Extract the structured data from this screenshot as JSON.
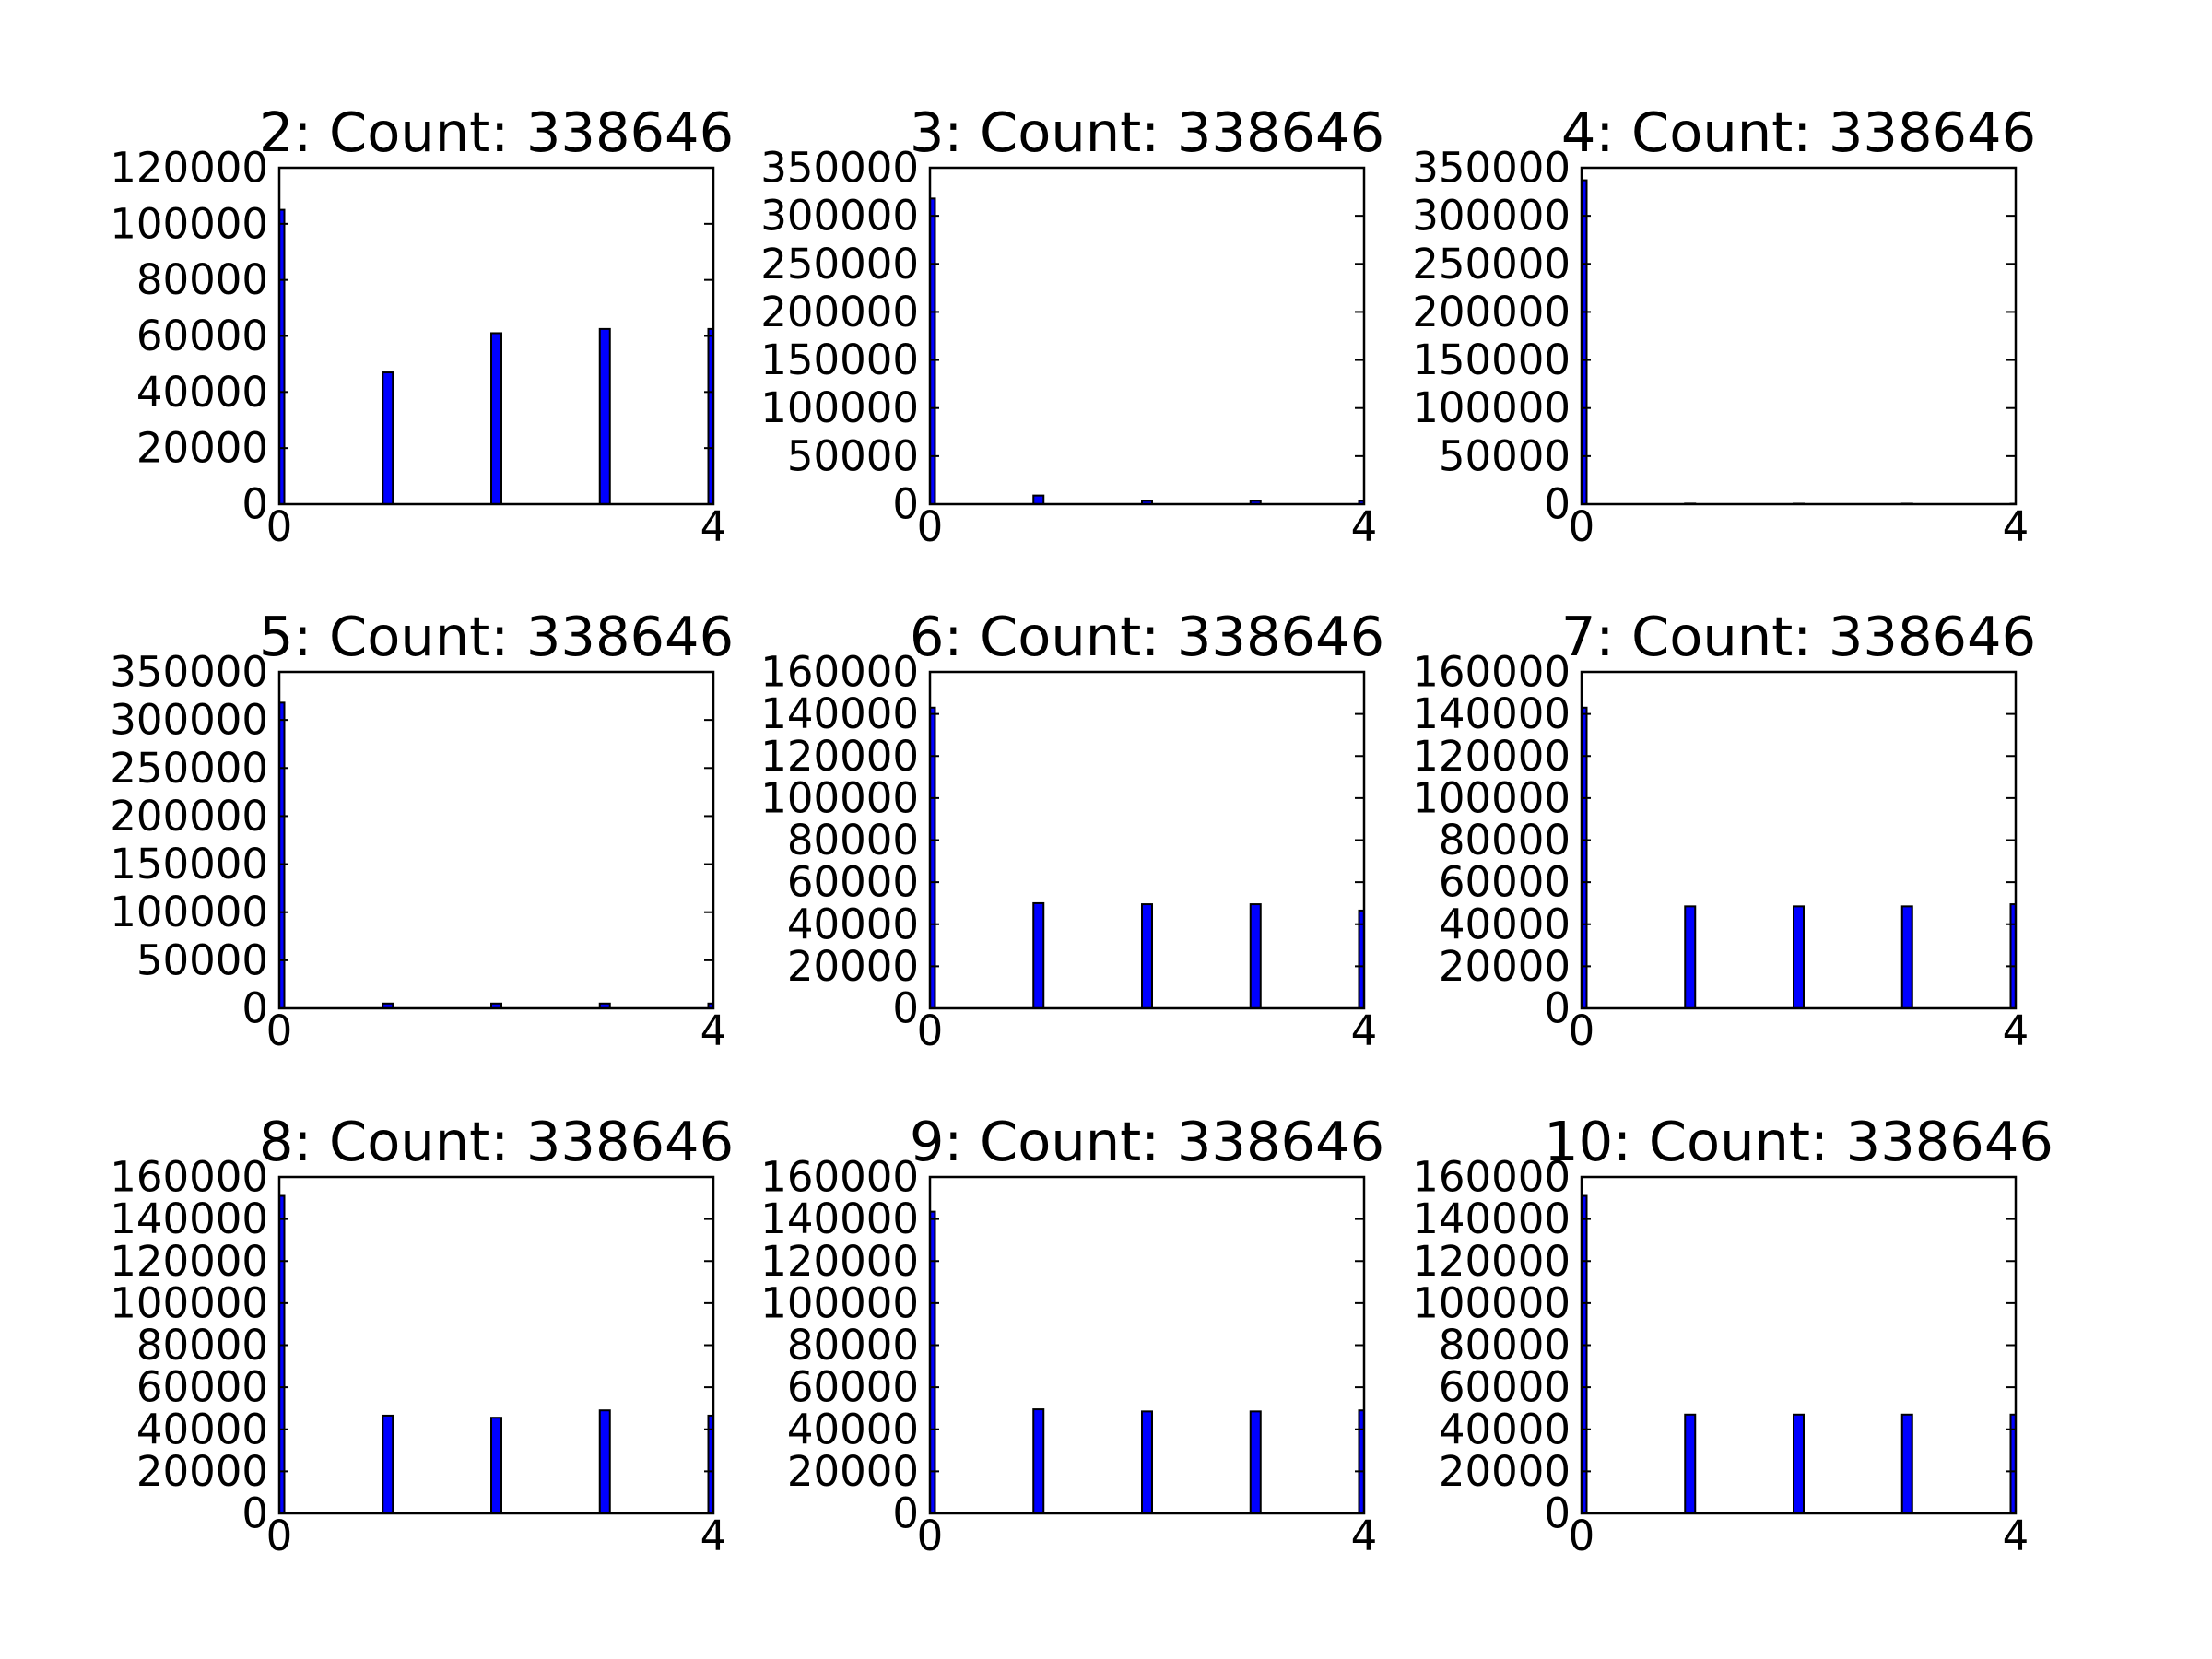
{
  "bar_color": "#0000ff",
  "chart_data": [
    {
      "type": "bar",
      "title": "2: Count: 338646",
      "xlabel": "",
      "ylabel": "",
      "x": [
        0,
        1,
        2,
        3,
        4
      ],
      "values": [
        105000,
        47000,
        61000,
        62500,
        62500
      ],
      "xlim": [
        0,
        4
      ],
      "ylim": [
        0,
        120000
      ],
      "x_ticks": [
        "0",
        "4"
      ],
      "y_ticks": [
        "0",
        "20000",
        "40000",
        "60000",
        "80000",
        "100000",
        "120000"
      ],
      "grid": false
    },
    {
      "type": "bar",
      "title": "3: Count: 338646",
      "xlabel": "",
      "ylabel": "",
      "x": [
        0,
        1,
        2,
        3,
        4
      ],
      "values": [
        318000,
        9000,
        3500,
        3500,
        3500
      ],
      "xlim": [
        0,
        4
      ],
      "ylim": [
        0,
        350000
      ],
      "x_ticks": [
        "0",
        "4"
      ],
      "y_ticks": [
        "0",
        "50000",
        "100000",
        "150000",
        "200000",
        "250000",
        "300000",
        "350000"
      ],
      "grid": false
    },
    {
      "type": "bar",
      "title": "4: Count: 338646",
      "xlabel": "",
      "ylabel": "",
      "x": [
        0,
        1,
        2,
        3,
        4
      ],
      "values": [
        337000,
        600,
        500,
        500,
        400
      ],
      "xlim": [
        0,
        4
      ],
      "ylim": [
        0,
        350000
      ],
      "x_ticks": [
        "0",
        "4"
      ],
      "y_ticks": [
        "0",
        "50000",
        "100000",
        "150000",
        "200000",
        "250000",
        "300000",
        "350000"
      ],
      "grid": false
    },
    {
      "type": "bar",
      "title": "5: Count: 338646",
      "xlabel": "",
      "ylabel": "",
      "x": [
        0,
        1,
        2,
        3,
        4
      ],
      "values": [
        318000,
        5000,
        5000,
        5000,
        5000
      ],
      "xlim": [
        0,
        4
      ],
      "ylim": [
        0,
        350000
      ],
      "x_ticks": [
        "0",
        "4"
      ],
      "y_ticks": [
        "0",
        "50000",
        "100000",
        "150000",
        "200000",
        "250000",
        "300000",
        "350000"
      ],
      "grid": false
    },
    {
      "type": "bar",
      "title": "6: Count: 338646",
      "xlabel": "",
      "ylabel": "",
      "x": [
        0,
        1,
        2,
        3,
        4
      ],
      "values": [
        143000,
        50000,
        49500,
        49500,
        46500
      ],
      "xlim": [
        0,
        4
      ],
      "ylim": [
        0,
        160000
      ],
      "x_ticks": [
        "0",
        "4"
      ],
      "y_ticks": [
        "0",
        "20000",
        "40000",
        "60000",
        "80000",
        "100000",
        "120000",
        "140000",
        "160000"
      ],
      "grid": false
    },
    {
      "type": "bar",
      "title": "7: Count: 338646",
      "xlabel": "",
      "ylabel": "",
      "x": [
        0,
        1,
        2,
        3,
        4
      ],
      "values": [
        143000,
        48500,
        48500,
        48500,
        49500
      ],
      "xlim": [
        0,
        4
      ],
      "ylim": [
        0,
        160000
      ],
      "x_ticks": [
        "0",
        "4"
      ],
      "y_ticks": [
        "0",
        "20000",
        "40000",
        "60000",
        "80000",
        "100000",
        "120000",
        "140000",
        "160000"
      ],
      "grid": false
    },
    {
      "type": "bar",
      "title": "8: Count: 338646",
      "xlabel": "",
      "ylabel": "",
      "x": [
        0,
        1,
        2,
        3,
        4
      ],
      "values": [
        151000,
        46500,
        45500,
        49000,
        46500
      ],
      "xlim": [
        0,
        4
      ],
      "ylim": [
        0,
        160000
      ],
      "x_ticks": [
        "0",
        "4"
      ],
      "y_ticks": [
        "0",
        "20000",
        "40000",
        "60000",
        "80000",
        "100000",
        "120000",
        "140000",
        "160000"
      ],
      "grid": false
    },
    {
      "type": "bar",
      "title": "9: Count: 338646",
      "xlabel": "",
      "ylabel": "",
      "x": [
        0,
        1,
        2,
        3,
        4
      ],
      "values": [
        143500,
        49500,
        48500,
        48500,
        49000
      ],
      "xlim": [
        0,
        4
      ],
      "ylim": [
        0,
        160000
      ],
      "x_ticks": [
        "0",
        "4"
      ],
      "y_ticks": [
        "0",
        "20000",
        "40000",
        "60000",
        "80000",
        "100000",
        "120000",
        "140000",
        "160000"
      ],
      "grid": false
    },
    {
      "type": "bar",
      "title": "10: Count: 338646",
      "xlabel": "",
      "ylabel": "",
      "x": [
        0,
        1,
        2,
        3,
        4
      ],
      "values": [
        151000,
        47000,
        47000,
        47000,
        47000
      ],
      "xlim": [
        0,
        4
      ],
      "ylim": [
        0,
        160000
      ],
      "x_ticks": [
        "0",
        "4"
      ],
      "y_ticks": [
        "0",
        "20000",
        "40000",
        "60000",
        "80000",
        "100000",
        "120000",
        "140000",
        "160000"
      ],
      "grid": false
    }
  ]
}
